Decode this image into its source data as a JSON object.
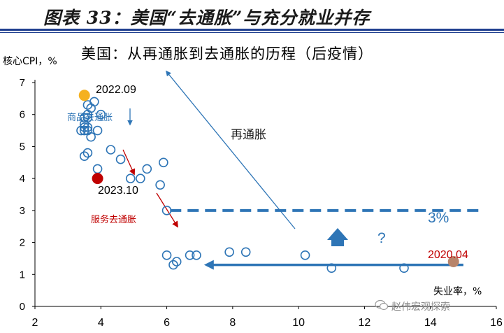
{
  "header": {
    "title": "图表 33：美国“去通胀”与充分就业并存"
  },
  "chart_data": {
    "type": "scatter",
    "title": "美国：从再通胀到去通胀的历程（后疫情）",
    "ylabel": "核心CPI，%",
    "xlabel": "失业率，%",
    "xlim": [
      2,
      16
    ],
    "ylim": [
      0,
      7
    ],
    "x_ticks": [
      2,
      4,
      6,
      8,
      10,
      12,
      14,
      16
    ],
    "x_tick_labels": [
      "2",
      "4",
      "6",
      "8",
      "10",
      "12",
      "14",
      "16"
    ],
    "y_ticks": [
      0,
      1,
      2,
      3,
      4,
      5,
      6,
      7
    ],
    "y_tick_labels": [
      "0",
      "1",
      "2",
      "3",
      "4",
      "5",
      "6",
      "7"
    ],
    "points": [
      {
        "x": 14.7,
        "y": 1.4
      },
      {
        "x": 13.2,
        "y": 1.2
      },
      {
        "x": 11.0,
        "y": 1.2
      },
      {
        "x": 10.2,
        "y": 1.6
      },
      {
        "x": 8.4,
        "y": 1.7
      },
      {
        "x": 7.9,
        "y": 1.7
      },
      {
        "x": 6.9,
        "y": 1.6
      },
      {
        "x": 6.7,
        "y": 1.6
      },
      {
        "x": 6.3,
        "y": 1.4
      },
      {
        "x": 6.2,
        "y": 1.3
      },
      {
        "x": 6.0,
        "y": 1.6
      },
      {
        "x": 6.0,
        "y": 3.0
      },
      {
        "x": 5.9,
        "y": 4.5
      },
      {
        "x": 5.8,
        "y": 3.8
      },
      {
        "x": 5.4,
        "y": 4.3
      },
      {
        "x": 5.2,
        "y": 4.0
      },
      {
        "x": 4.9,
        "y": 4.0
      },
      {
        "x": 4.6,
        "y": 4.6
      },
      {
        "x": 4.3,
        "y": 4.9
      },
      {
        "x": 3.9,
        "y": 4.3
      },
      {
        "x": 3.6,
        "y": 4.8
      },
      {
        "x": 3.5,
        "y": 4.7
      },
      {
        "x": 3.5,
        "y": 5.5
      },
      {
        "x": 3.6,
        "y": 5.5
      },
      {
        "x": 3.7,
        "y": 5.3
      },
      {
        "x": 3.6,
        "y": 5.6
      },
      {
        "x": 3.5,
        "y": 5.6
      },
      {
        "x": 3.5,
        "y": 5.7
      },
      {
        "x": 3.4,
        "y": 5.5
      },
      {
        "x": 3.5,
        "y": 5.9
      },
      {
        "x": 3.6,
        "y": 6.0
      },
      {
        "x": 3.6,
        "y": 5.9
      },
      {
        "x": 3.7,
        "y": 6.2
      },
      {
        "x": 3.6,
        "y": 6.3
      },
      {
        "x": 3.8,
        "y": 6.4
      },
      {
        "x": 4.0,
        "y": 6.0
      },
      {
        "x": 3.9,
        "y": 5.5
      }
    ],
    "highlights": [
      {
        "label": "2022.09",
        "x": 3.5,
        "y": 6.6,
        "color": "#f5b120"
      },
      {
        "label": "2023.10",
        "x": 3.9,
        "y": 4.0,
        "color": "#c00000"
      },
      {
        "label": "2020.04",
        "x": 14.7,
        "y": 1.4,
        "color": "#b8846a"
      }
    ],
    "annotations": {
      "reinflation": "再通胀",
      "goods_disinflation": "商品去通胀",
      "services_disinflation": "服务去通胀",
      "question": "?",
      "threshold_label": "3%"
    },
    "threshold_y": 3.0,
    "colors": {
      "marker": "#2e75b6",
      "arrow_blue": "#2e75b6",
      "arrow_red": "#c00000",
      "label_red": "#c00000",
      "grid_dash": "#2e75b6"
    },
    "watermark": "赵伟宏观探索"
  }
}
